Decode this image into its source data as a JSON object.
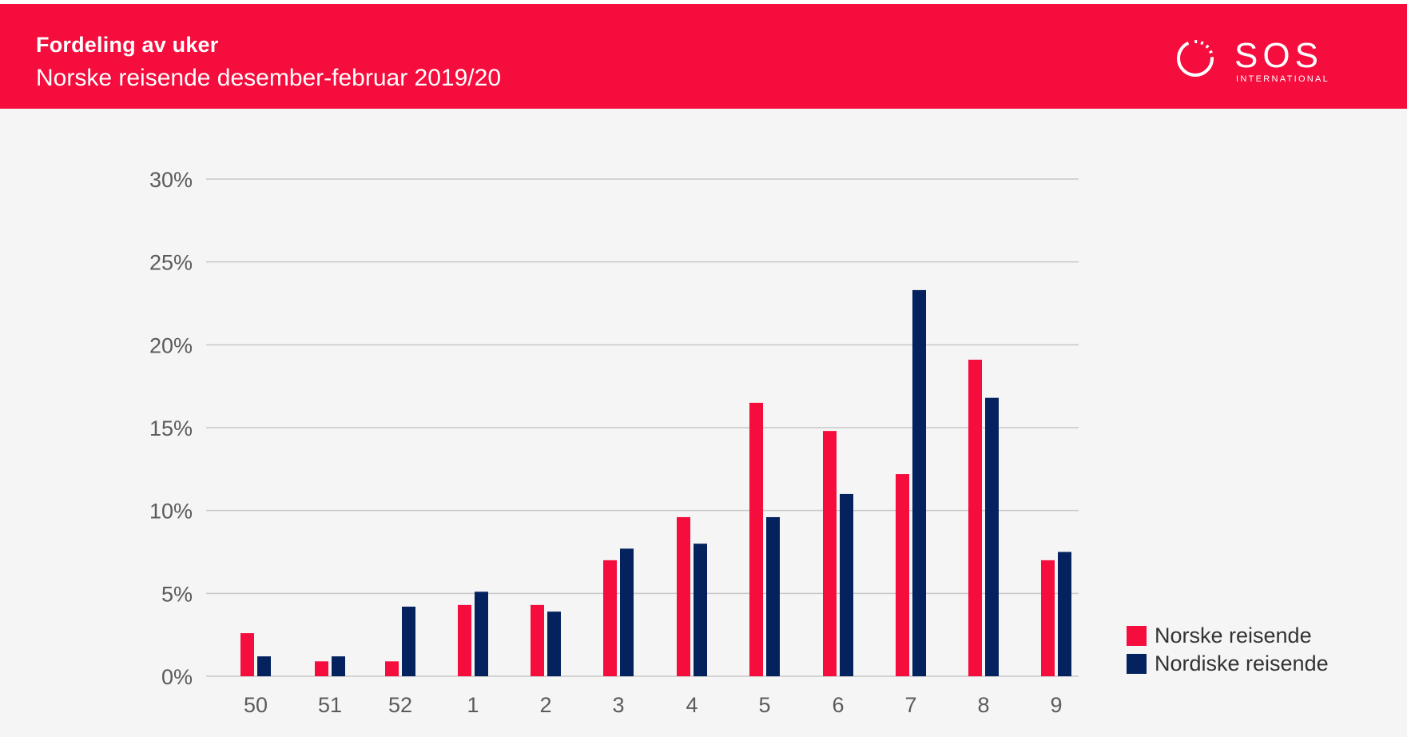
{
  "header": {
    "title": "Fordeling av uker",
    "subtitle": "Norske reisende desember-februar 2019/20",
    "logo_text": "SOS",
    "logo_subtext": "INTERNATIONAL"
  },
  "colors": {
    "header_bg": "#f40d3d",
    "norske": "#f40d3d",
    "nordiske": "#04235e"
  },
  "chart_data": {
    "type": "bar",
    "title": "Fordeling av uker",
    "subtitle": "Norske reisende desember-februar 2019/20",
    "xlabel": "",
    "ylabel": "",
    "categories": [
      "50",
      "51",
      "52",
      "1",
      "2",
      "3",
      "4",
      "5",
      "6",
      "7",
      "8",
      "9"
    ],
    "y_ticks": [
      "0%",
      "5%",
      "10%",
      "15%",
      "20%",
      "25%",
      "30%"
    ],
    "ylim": [
      0,
      30
    ],
    "grid": true,
    "legend_position": "bottom-right",
    "series": [
      {
        "name": "Norske reisende",
        "color": "#f40d3d",
        "values": [
          2.6,
          0.9,
          0.9,
          4.3,
          4.3,
          7.0,
          9.6,
          16.5,
          14.8,
          12.2,
          19.1,
          7.0
        ]
      },
      {
        "name": "Nordiske reisende",
        "color": "#04235e",
        "values": [
          1.2,
          1.2,
          4.2,
          5.1,
          3.9,
          7.7,
          8.0,
          9.6,
          11.0,
          23.3,
          16.8,
          7.5
        ]
      }
    ]
  }
}
